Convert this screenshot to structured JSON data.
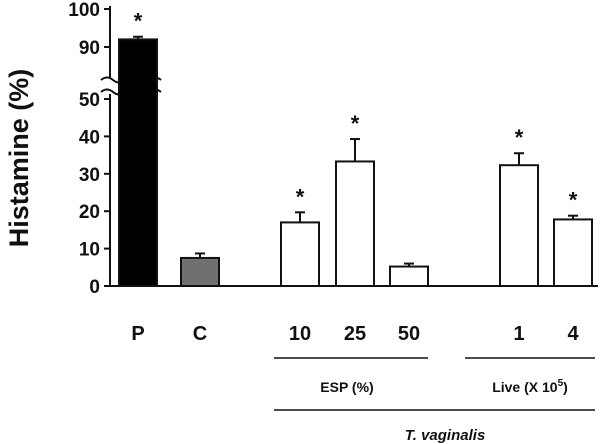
{
  "chart_data": {
    "type": "bar",
    "ylabel": "Histamine (%)",
    "y_lower_ticks": [
      0,
      10,
      20,
      30,
      40,
      50
    ],
    "y_upper_ticks": [
      90,
      100
    ],
    "y_lower_range": [
      0,
      50
    ],
    "y_upper_range": [
      88,
      100
    ],
    "y_break": true,
    "bars": [
      {
        "category": "P",
        "value": 92,
        "error": 0.7,
        "marker": "*",
        "fill": "#000000"
      },
      {
        "category": "C",
        "value": 7.5,
        "error": 1.2,
        "marker": "",
        "fill": "#707070"
      },
      {
        "category": "10",
        "value": 17,
        "error": 2.7,
        "marker": "*",
        "fill": "#ffffff"
      },
      {
        "category": "25",
        "value": 33.3,
        "error": 6.0,
        "marker": "*",
        "fill": "#ffffff"
      },
      {
        "category": "50",
        "value": 5.2,
        "error": 0.8,
        "marker": "",
        "fill": "#ffffff"
      },
      {
        "category": "1",
        "value": 32.3,
        "error": 3.2,
        "marker": "*",
        "fill": "#ffffff"
      },
      {
        "category": "4",
        "value": 17.8,
        "error": 1.0,
        "marker": "*",
        "fill": "#ffffff"
      }
    ],
    "groups": {
      "esp_label": "ESP (%)",
      "live_label": "Live (X 10",
      "live_exp": "5",
      "live_close": ")",
      "parasite_label": "T. vaginalis"
    }
  }
}
